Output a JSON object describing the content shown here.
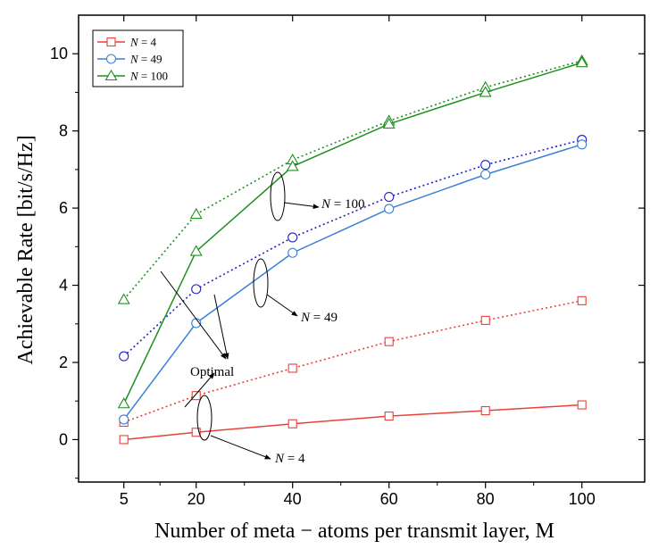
{
  "chart_data": {
    "type": "line",
    "title": "",
    "xlabel": "Number of meta − atoms per transmit layer, M",
    "ylabel": "Achievable Rate [bit/s/Hz]",
    "x": [
      5,
      20,
      40,
      60,
      80,
      100
    ],
    "x_ticks": [
      "5",
      "20",
      "40",
      "60",
      "80",
      "100"
    ],
    "y_ticks": [
      "0",
      "2",
      "4",
      "6",
      "8",
      "10"
    ],
    "ylim": [
      -1.1,
      11
    ],
    "grid": false,
    "legend_position": "top-left",
    "series": [
      {
        "name": "N = 4",
        "legend_var": "N",
        "legend_val": "= 4",
        "color": "#e8403a",
        "marker": "square",
        "style": "solid",
        "values": [
          0.0,
          0.19,
          0.41,
          0.61,
          0.75,
          0.9
        ]
      },
      {
        "name": "N = 49",
        "legend_var": "N",
        "legend_val": "= 49",
        "color": "#3a7fd6",
        "marker": "circle",
        "style": "solid",
        "values": [
          0.52,
          3.02,
          4.84,
          5.98,
          6.87,
          7.65
        ]
      },
      {
        "name": "N = 100",
        "legend_var": "N",
        "legend_val": "= 100",
        "color": "#1f8f1f",
        "marker": "triangle",
        "style": "solid",
        "values": [
          0.93,
          4.88,
          7.08,
          8.18,
          9.0,
          9.77
        ]
      },
      {
        "name": "N = 4 (Optimal)",
        "color": "#e8403a",
        "marker": "square",
        "style": "dotted",
        "values": [
          0.45,
          1.14,
          1.85,
          2.54,
          3.09,
          3.6
        ]
      },
      {
        "name": "N = 49 (Optimal)",
        "color": "#2020c8",
        "marker": "circle",
        "style": "dotted",
        "values": [
          2.16,
          3.9,
          5.24,
          6.29,
          7.12,
          7.77
        ]
      },
      {
        "name": "N = 100 (Optimal)",
        "color": "#1f8f1f",
        "marker": "triangle",
        "style": "dotted",
        "values": [
          3.63,
          5.84,
          7.25,
          8.26,
          9.13,
          9.82
        ]
      }
    ],
    "annotations": {
      "optimal": "Optimal",
      "n100": {
        "var": "N",
        "val": "= 100"
      },
      "n49": {
        "var": "N",
        "val": "= 49"
      },
      "n4": {
        "var": "N",
        "val": "= 4"
      }
    }
  }
}
